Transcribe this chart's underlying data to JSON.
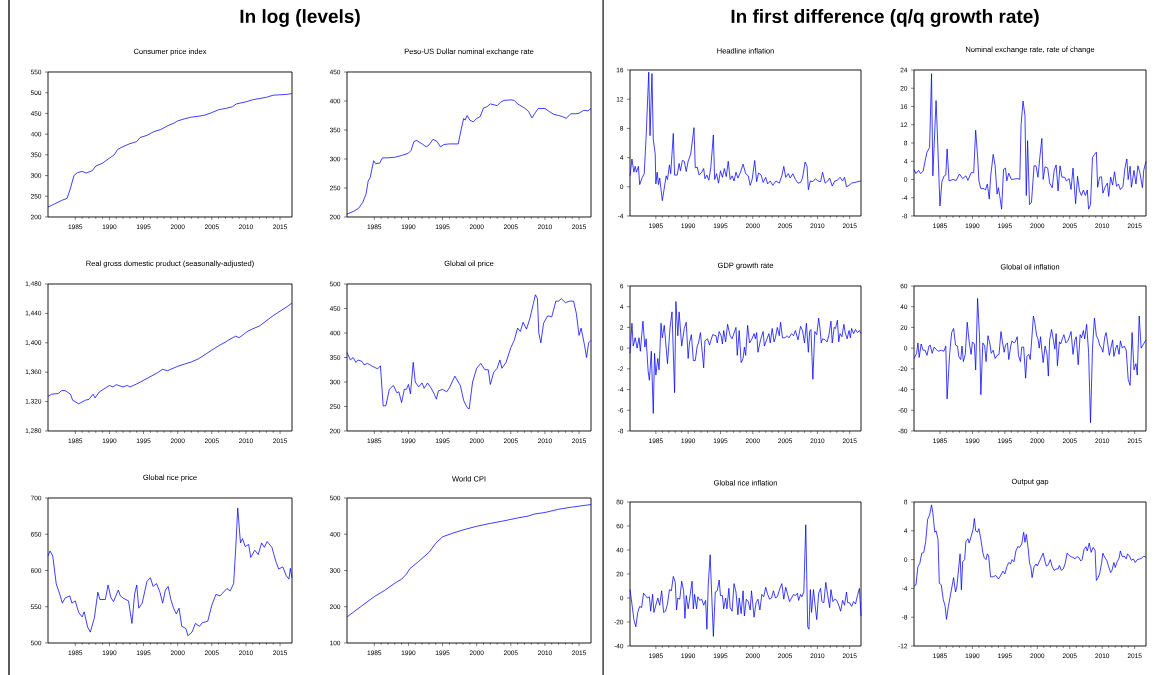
{
  "chart_data": [
    {
      "type": "line",
      "title": "Consumer price index",
      "annotations": [
        "In log (levels)"
      ],
      "color": "#0000ff",
      "xlim": [
        1981,
        2016.75
      ],
      "xticks": [
        1985,
        1990,
        1995,
        2000,
        2005,
        2010,
        2015
      ],
      "ylim": [
        200,
        550
      ],
      "yticks": [
        200,
        250,
        300,
        350,
        400,
        450,
        500,
        550
      ],
      "x": [
        1981,
        1982,
        1983,
        1983.8,
        1984.3,
        1984.8,
        1985.3,
        1986,
        1986.6,
        1987.5,
        1988,
        1989,
        1990,
        1990.7,
        1991.2,
        1992,
        1993,
        1994,
        1994.5,
        1995.5,
        1996.5,
        1997.5,
        1998.5,
        1999.5,
        2000,
        2001,
        2002,
        2003,
        2004,
        2005,
        2006,
        2007,
        2008,
        2008.6,
        2010,
        2011,
        2012,
        2013,
        2014,
        2015,
        2016,
        2016.75
      ],
      "values": [
        224,
        232,
        240,
        245,
        270,
        300,
        307,
        310,
        306,
        312,
        323,
        330,
        342,
        350,
        363,
        370,
        377,
        382,
        392,
        397,
        406,
        411,
        420,
        427,
        432,
        437,
        441,
        443,
        446,
        452,
        459,
        462,
        466,
        473,
        478,
        483,
        486,
        489,
        494,
        495,
        496,
        498
      ]
    },
    {
      "type": "line",
      "title": "Peso-US Dollar nominal exchange rate",
      "color": "#0000ff",
      "xlim": [
        1981,
        2016.75
      ],
      "xticks": [
        1985,
        1990,
        1995,
        2000,
        2005,
        2010,
        2015
      ],
      "ylim": [
        200,
        450
      ],
      "yticks": [
        200,
        250,
        300,
        350,
        400,
        450
      ],
      "x": [
        1981,
        1982,
        1982.7,
        1983.3,
        1983.8,
        1984.1,
        1984.4,
        1984.9,
        1985.2,
        1985.8,
        1986.2,
        1987,
        1988,
        1989,
        1990,
        1990.4,
        1990.8,
        1991.2,
        1992,
        1992.6,
        1993,
        1993.6,
        1994.2,
        1994.7,
        1995.2,
        1996,
        1997.3,
        1997.8,
        1998.1,
        1998.3,
        1998.6,
        1999,
        1999.5,
        2000,
        2000.5,
        2001,
        2001.5,
        2002,
        2003,
        2003.5,
        2004,
        2005,
        2005.5,
        2006,
        2007,
        2007.6,
        2008.1,
        2008.6,
        2009,
        2010,
        2010.6,
        2011.3,
        2012,
        2012.6,
        2013.1,
        2013.8,
        2014.5,
        2015,
        2015.7,
        2016.3,
        2016.75
      ],
      "values": [
        205,
        210,
        215,
        225,
        240,
        262,
        268,
        297,
        292,
        293,
        302,
        302,
        303,
        306,
        310,
        315,
        330,
        332,
        326,
        321,
        324,
        334,
        330,
        321,
        325,
        326,
        326,
        355,
        370,
        367,
        375,
        367,
        364,
        370,
        373,
        388,
        390,
        395,
        392,
        398,
        401,
        402,
        401,
        395,
        388,
        382,
        371,
        380,
        387,
        387,
        382,
        377,
        375,
        373,
        370,
        378,
        378,
        379,
        384,
        383,
        387
      ]
    },
    {
      "type": "line",
      "title": "Real gross domestic product (seasonally-adjusted)",
      "color": "#0000ff",
      "xlim": [
        1981,
        2016.75
      ],
      "xticks": [
        1985,
        1990,
        1995,
        2000,
        2005,
        2010,
        2015
      ],
      "ylim": [
        1280,
        1480
      ],
      "yticks": [
        {
          "value": 1280,
          "label": "1,280"
        },
        {
          "value": 1320,
          "label": "1,320"
        },
        {
          "value": 1360,
          "label": "1,360"
        },
        {
          "value": 1400,
          "label": "1,400"
        },
        {
          "value": 1440,
          "label": "1,440"
        },
        {
          "value": 1480,
          "label": "1,480"
        }
      ],
      "x": [
        1981,
        1981.5,
        1982.5,
        1983,
        1983.5,
        1984.3,
        1984.6,
        1985.5,
        1986.5,
        1987,
        1987.6,
        1987.9,
        1988.5,
        1989,
        1990,
        1990.5,
        1991,
        1992,
        1992.6,
        1993,
        1994,
        1995,
        1996,
        1997,
        1997.8,
        1998.5,
        1999,
        2000,
        2001,
        2002,
        2003,
        2004,
        2005,
        2006,
        2007,
        2007.5,
        2008.5,
        2009,
        2009.6,
        2010.3,
        2011,
        2012,
        2013,
        2014,
        2015,
        2016,
        2016.75
      ],
      "values": [
        1327,
        1330,
        1331,
        1335,
        1335,
        1330,
        1322,
        1317,
        1322,
        1323,
        1330,
        1325,
        1333,
        1336,
        1342,
        1340,
        1343,
        1340,
        1342,
        1340,
        1344,
        1349,
        1354,
        1359,
        1364,
        1362,
        1364,
        1368,
        1371,
        1374,
        1378,
        1384,
        1390,
        1396,
        1401,
        1404,
        1409,
        1407,
        1411,
        1416,
        1419,
        1423,
        1430,
        1437,
        1443,
        1449,
        1454
      ]
    },
    {
      "type": "line",
      "title": "Global oil price",
      "color": "#0000ff",
      "xlim": [
        1981,
        2016.75
      ],
      "xticks": [
        1985,
        1990,
        1995,
        2000,
        2005,
        2010,
        2015
      ],
      "ylim": [
        200,
        500
      ],
      "yticks": [
        200,
        250,
        300,
        350,
        400,
        450,
        500
      ],
      "x": [
        1981,
        1981.5,
        1981.9,
        1982.3,
        1982.6,
        1983.2,
        1983.5,
        1984,
        1984.6,
        1985,
        1985.5,
        1985.9,
        1986.3,
        1986.7,
        1987.2,
        1987.8,
        1988.3,
        1988.6,
        1989,
        1989.4,
        1989.7,
        1990,
        1990.3,
        1990.7,
        1991,
        1991.5,
        1992,
        1992.3,
        1992.8,
        1993.3,
        1993.8,
        1994.1,
        1994.4,
        1995,
        1995.6,
        1996,
        1996.8,
        1997.3,
        1997.6,
        1998.1,
        1998.6,
        1998.9,
        1999.4,
        2000,
        2000.6,
        2001.2,
        2001.7,
        2002,
        2002.5,
        2003,
        2003.4,
        2003.7,
        2004.3,
        2005,
        2005.5,
        2006,
        2006.4,
        2006.8,
        2007.3,
        2007.8,
        2008.3,
        2008.6,
        2008.9,
        2009.1,
        2009.4,
        2009.8,
        2010.4,
        2011,
        2011.6,
        2012,
        2012.4,
        2013,
        2013.6,
        2014.2,
        2014.6,
        2015,
        2015.3,
        2015.8,
        2016.1,
        2016.4,
        2016.75
      ],
      "values": [
        360,
        345,
        350,
        340,
        345,
        342,
        335,
        338,
        333,
        330,
        327,
        333,
        251,
        252,
        285,
        293,
        278,
        280,
        258,
        285,
        285,
        295,
        276,
        340,
        300,
        290,
        298,
        287,
        298,
        288,
        275,
        265,
        282,
        285,
        280,
        288,
        312,
        300,
        293,
        262,
        248,
        245,
        300,
        328,
        338,
        325,
        325,
        295,
        320,
        328,
        345,
        328,
        340,
        370,
        385,
        410,
        403,
        422,
        408,
        430,
        460,
        478,
        470,
        400,
        380,
        420,
        435,
        433,
        465,
        465,
        470,
        462,
        465,
        465,
        440,
        395,
        410,
        375,
        350,
        380,
        385
      ]
    },
    {
      "type": "line",
      "title": "Global rice price",
      "color": "#0000ff",
      "xlim": [
        1981,
        2016.75
      ],
      "xticks": [
        1985,
        1990,
        1995,
        2000,
        2005,
        2010,
        2015
      ],
      "ylim": [
        500,
        700
      ],
      "yticks": [
        500,
        550,
        600,
        650,
        700
      ],
      "x": [
        1981,
        1981.3,
        1981.7,
        1982.2,
        1982.8,
        1983.1,
        1983.5,
        1984.2,
        1984.5,
        1985,
        1985.5,
        1986,
        1986.3,
        1986.8,
        1987.2,
        1987.8,
        1988.3,
        1988.6,
        1989.4,
        1989.8,
        1990.2,
        1990.6,
        1991.3,
        1991.6,
        1992,
        1992.8,
        1993.3,
        1993.7,
        1994,
        1994.3,
        1994.8,
        1995.5,
        1996,
        1996.4,
        1996.9,
        1997.4,
        1997.8,
        1998.2,
        1998.6,
        1999,
        1999.4,
        1999.8,
        2000.2,
        2000.6,
        2001.2,
        2001.5,
        2002.1,
        2002.6,
        2003.2,
        2003.6,
        2004.4,
        2005,
        2005.6,
        2006.2,
        2007.2,
        2007.7,
        2008.2,
        2008.5,
        2008.8,
        2009.2,
        2009.5,
        2009.9,
        2010.4,
        2010.7,
        2011.3,
        2011.8,
        2012.3,
        2012.7,
        2013.1,
        2013.8,
        2014.4,
        2014.8,
        2015.4,
        2015.9,
        2016.3,
        2016.5,
        2016.75
      ],
      "values": [
        620,
        627,
        620,
        582,
        565,
        555,
        562,
        565,
        555,
        558,
        542,
        536,
        543,
        522,
        515,
        535,
        570,
        560,
        560,
        580,
        563,
        557,
        573,
        565,
        562,
        558,
        527,
        568,
        580,
        548,
        555,
        585,
        590,
        578,
        582,
        570,
        555,
        573,
        578,
        560,
        548,
        540,
        548,
        523,
        520,
        510,
        515,
        527,
        523,
        528,
        530,
        552,
        567,
        565,
        575,
        572,
        582,
        630,
        686,
        638,
        644,
        633,
        636,
        618,
        628,
        622,
        638,
        632,
        640,
        632,
        612,
        602,
        605,
        593,
        588,
        603,
        590
      ]
    },
    {
      "type": "line",
      "title": "World CPI",
      "color": "#0000ff",
      "xlim": [
        1981,
        2016.75
      ],
      "xticks": [
        1985,
        1990,
        1995,
        2000,
        2005,
        2010,
        2015
      ],
      "ylim": [
        100,
        500
      ],
      "yticks": [
        100,
        200,
        300,
        400,
        500
      ],
      "x": [
        1981,
        1983,
        1985,
        1986.5,
        1988,
        1989,
        1989.7,
        1990.2,
        1991.5,
        1993,
        1994,
        1995,
        1996.5,
        1998,
        2000,
        2002,
        2004,
        2006,
        2007.5,
        2008.5,
        2010,
        2012,
        2014,
        2016.75
      ],
      "values": [
        172,
        200,
        228,
        245,
        265,
        276,
        290,
        305,
        325,
        350,
        375,
        393,
        403,
        412,
        422,
        430,
        437,
        445,
        450,
        456,
        460,
        469,
        475,
        482
      ]
    },
    {
      "type": "line",
      "title": "Headline inflation",
      "annotations": [
        "In first difference (q/q growth rate)"
      ],
      "color": "#0000ff",
      "xlim": [
        1981,
        2016.75
      ],
      "xticks": [
        1985,
        1990,
        1995,
        2000,
        2005,
        2010,
        2015
      ],
      "ylim": [
        -4,
        16
      ],
      "yticks": [
        -4,
        0,
        4,
        8,
        12,
        16
      ],
      "x": [
        1981.0,
        1981.3,
        1981.6,
        1981.8,
        1982.0,
        1982.3,
        1982.5,
        1982.9,
        1983.2,
        1983.5,
        1983.9,
        1984.1,
        1984.4,
        1984.6,
        1984.9,
        1985.0,
        1985.2,
        1985.4,
        1985.6,
        1986.0,
        1986.6,
        1986.8,
        1987.1,
        1987.3,
        1987.7,
        1987.9,
        1988.3,
        1988.6,
        1988.8,
        1989.1,
        1989.4,
        1989.7,
        1990.0,
        1990.4,
        1990.9,
        1991.1,
        1991.4,
        1991.7,
        1992.1,
        1992.4,
        1992.6,
        1992.9,
        1993.2,
        1993.5,
        1993.9,
        1994.1,
        1994.4,
        1994.7,
        1995.0,
        1995.3,
        1995.6,
        1995.9,
        1996.2,
        1996.5,
        1996.8,
        1997.1,
        1997.4,
        1997.7,
        1998.1,
        1998.5,
        1998.9,
        1999.3,
        1999.6,
        1999.9,
        2000.3,
        2000.6,
        2000.9,
        2001.3,
        2001.6,
        2002,
        2002.3,
        2002.7,
        2003.1,
        2003.6,
        2004.1,
        2004.5,
        2004.8,
        2005.1,
        2005.5,
        2005.8,
        2006.2,
        2006.6,
        2007,
        2007.4,
        2007.7,
        2008.1,
        2008.4,
        2008.6,
        2008.9,
        2009.3,
        2009.7,
        2010.1,
        2010.5,
        2010.8,
        2011.2,
        2011.6,
        2011.9,
        2012.3,
        2012.7,
        2013.1,
        2013.5,
        2013.9,
        2014.2,
        2014.5,
        2014.9,
        2015.3,
        2016.75
      ],
      "values": [
        1.5,
        3.8,
        2,
        2.8,
        2,
        2.8,
        0.3,
        1.3,
        1.8,
        7,
        15.7,
        7,
        15.5,
        6.5,
        4.5,
        0.4,
        2,
        0.3,
        1.2,
        -1.9,
        1.5,
        1,
        3,
        1.8,
        7.3,
        1.6,
        1.6,
        3.2,
        2.2,
        3.6,
        3.5,
        2.1,
        3.5,
        4.5,
        8.1,
        2.6,
        2.7,
        1.6,
        2,
        2.5,
        1.1,
        1.6,
        0.9,
        2.6,
        7.1,
        1.0,
        1.8,
        0.5,
        2.2,
        1.3,
        2.5,
        1.4,
        3.5,
        1.0,
        1.5,
        0.8,
        2.0,
        1.2,
        2.0,
        3.1,
        1.8,
        1.5,
        0.2,
        1.0,
        3.6,
        0.7,
        1.9,
        1.6,
        0.6,
        1.3,
        0.4,
        0.8,
        0.2,
        0.8,
        0.5,
        1.5,
        2.8,
        1.3,
        1.8,
        1.2,
        1.8,
        1.0,
        0.5,
        0.6,
        1.2,
        3.4,
        2.8,
        -0.4,
        0.8,
        0.7,
        1.1,
        0.8,
        0.7,
        2.0,
        0.5,
        0.8,
        1.2,
        0.1,
        0.8,
        0.9,
        1.3,
        0.8,
        1.3,
        0.0,
        0.2,
        0.5,
        0.8
      ]
    },
    {
      "type": "line",
      "title": "Nominal exchange rate, rate of change",
      "color": "#0000ff",
      "xlim": [
        1981,
        2016.75
      ],
      "xticks": [
        1985,
        1990,
        1995,
        2000,
        2005,
        2010,
        2015
      ],
      "ylim": [
        -8,
        24
      ],
      "yticks": [
        -8,
        -4,
        0,
        4,
        8,
        12,
        16,
        20,
        24
      ],
      "x": [
        1981,
        1981.3,
        1981.7,
        1982,
        1982.4,
        1982.7,
        1983,
        1983.4,
        1983.7,
        1983.9,
        1984.4,
        1984.6,
        1985,
        1985.3,
        1985.6,
        1985.9,
        1986.1,
        1986.4,
        1987,
        1987.5,
        1988,
        1988.5,
        1989,
        1989.3,
        1989.8,
        1990.2,
        1990.5,
        1990.8,
        1991,
        1991.3,
        1991.8,
        1992,
        1992.3,
        1992.6,
        1992.8,
        1993.2,
        1993.5,
        1993.8,
        1994,
        1994.2,
        1994.5,
        1994.8,
        1995.1,
        1995.3,
        1995.6,
        1996,
        1997,
        1997.3,
        1997.5,
        1997.8,
        1998.1,
        1998.3,
        1998.5,
        1998.8,
        1999.1,
        1999.5,
        1999.8,
        2000.1,
        2000.4,
        2000.7,
        2000.9,
        2001.2,
        2001.6,
        2001.9,
        2002.3,
        2002.6,
        2002.9,
        2003.2,
        2003.5,
        2003.8,
        2004.2,
        2004.5,
        2004.9,
        2005.2,
        2005.5,
        2005.9,
        2006.2,
        2006.5,
        2006.8,
        2007.1,
        2007.4,
        2007.7,
        2007.9,
        2008.2,
        2008.5,
        2008.8,
        2009.1,
        2009.3,
        2009.6,
        2009.9,
        2010.1,
        2010.5,
        2010.8,
        2011,
        2011.3,
        2011.6,
        2011.9,
        2012.2,
        2012.5,
        2012.8,
        2013.2,
        2013.5,
        2013.8,
        2014,
        2014.3,
        2014.5,
        2014.9,
        2015.2,
        2015.5,
        2015.8,
        2016.2,
        2016.4,
        2016.75
      ],
      "values": [
        2.2,
        1.3,
        2.0,
        1.3,
        1.8,
        4,
        6,
        7,
        23.2,
        0.8,
        17.3,
        10,
        -5.8,
        -0.5,
        0.7,
        1,
        6.7,
        -0.3,
        0,
        -0.2,
        1.2,
        0.2,
        0.8,
        -0.2,
        1.5,
        1.5,
        10.8,
        5,
        -0.3,
        -2,
        -2,
        -2.3,
        -1,
        -4.3,
        0.5,
        5.5,
        3,
        -3.2,
        -1.8,
        -3.5,
        -6.5,
        2.2,
        2.5,
        -0.3,
        1.4,
        0,
        0.2,
        0,
        12,
        17.2,
        14,
        -3.5,
        8.5,
        -5.5,
        -5,
        3,
        3,
        0.5,
        5,
        9,
        0,
        2.8,
        2.5,
        -0.8,
        -1.8,
        2,
        3.2,
        -2.5,
        3,
        0.5,
        0.5,
        -0.3,
        0.2,
        -2.2,
        2.5,
        -5.3,
        0.7,
        -2.5,
        -3.5,
        -2.3,
        -3.5,
        -2.3,
        -6.5,
        -5.5,
        4.8,
        5.5,
        6.0,
        -1.7,
        0.5,
        0.6,
        -3,
        -1.5,
        -0.8,
        -3.7,
        0.5,
        -1.2,
        1.7,
        -1.5,
        -1,
        -2.2,
        -1.5,
        2.5,
        4.5,
        0,
        2.9,
        -1.7,
        2,
        -1,
        3,
        1.5,
        -1.8,
        2,
        4
      ]
    },
    {
      "type": "line",
      "title": "GDP growth rate",
      "color": "#0000ff",
      "xlim": [
        1981,
        2016.75
      ],
      "xticks": [
        1985,
        1990,
        1995,
        2000,
        2005,
        2010,
        2015
      ],
      "ylim": [
        -8,
        6
      ],
      "yticks": [
        -8,
        -6,
        -4,
        -2,
        0,
        2,
        4,
        6
      ],
      "x": [
        1981,
        1981.3,
        1981.5,
        1981.8,
        1982.1,
        1982.4,
        1982.6,
        1983,
        1983.3,
        1983.5,
        1983.8,
        1984,
        1984.3,
        1984.6,
        1984.8,
        1985,
        1985.3,
        1985.5,
        1985.8,
        1986,
        1986.3,
        1986.8,
        1987.2,
        1987.5,
        1987.9,
        1988.1,
        1988.4,
        1988.6,
        1989,
        1989.4,
        1989.7,
        1990,
        1990.2,
        1990.5,
        1990.8,
        1991.1,
        1991.4,
        1991.6,
        1991.9,
        1992.4,
        1992.6,
        1993,
        1993.3,
        1993.8,
        1994.3,
        1994.5,
        1994.8,
        1995.1,
        1995.3,
        1995.5,
        1995.8,
        1996.1,
        1996.5,
        1996.8,
        1997.4,
        1997.6,
        1997.9,
        1998.2,
        1998.5,
        1998.7,
        1998.9,
        1999.2,
        1999.5,
        1999.8,
        2000.2,
        2000.4,
        2000.6,
        2000.8,
        2001.2,
        2001.6,
        2001.8,
        2002.2,
        2002.5,
        2002.7,
        2003,
        2003.3,
        2003.5,
        2003.8,
        2004.1,
        2004.3,
        2004.6,
        2005,
        2005.3,
        2005.6,
        2006,
        2006.3,
        2006.6,
        2007,
        2007.4,
        2007.7,
        2008,
        2008.3,
        2008.6,
        2008.8,
        2009,
        2009.3,
        2009.6,
        2009.9,
        2010.2,
        2010.4,
        2010.6,
        2010.8,
        2011.2,
        2011.5,
        2011.8,
        2012.1,
        2012.3,
        2012.6,
        2012.8,
        2013.1,
        2013.3,
        2013.5,
        2013.8,
        2014.1,
        2014.3,
        2014.6,
        2014.9,
        2015.1,
        2015.3,
        2015.6,
        2015.9,
        2016.2,
        2016.5,
        2016.75
      ],
      "values": [
        -0.5,
        2.4,
        0.2,
        1.0,
        0,
        1.0,
        -0.3,
        2.6,
        0.1,
        0.9,
        -2.2,
        -3.1,
        -0.3,
        -6.3,
        -0.5,
        -2.6,
        -1,
        -2.1,
        2.4,
        1.0,
        2.2,
        -1.5,
        2.0,
        3.5,
        -4.3,
        4.5,
        1.2,
        3.5,
        0.2,
        1.9,
        2.5,
        -1.0,
        0.5,
        1.3,
        -1.2,
        -1.2,
        0.2,
        0.5,
        1.5,
        -1.9,
        0.7,
        0.9,
        0.3,
        1.3,
        1.2,
        0.5,
        1.6,
        1.2,
        0.4,
        1.7,
        0.6,
        2.3,
        1.2,
        0.9,
        2.0,
        -0.7,
        1.7,
        -1.4,
        -1.0,
        0.1,
        -0.7,
        2.2,
        0.5,
        0.8,
        1.4,
        0.9,
        1.5,
        -0.4,
        0.8,
        1.6,
        0.2,
        0.9,
        1.4,
        0.5,
        1.9,
        0.6,
        1.0,
        2.0,
        1.2,
        2.5,
        1.0,
        1.0,
        1.2,
        1.0,
        1.4,
        1.2,
        1.7,
        0.8,
        2.1,
        1.7,
        0.5,
        2.4,
        -0.4,
        1.6,
        1.8,
        -3.0,
        1.6,
        1.3,
        2.9,
        1.9,
        0.5,
        0.9,
        0.8,
        0.6,
        1.3,
        2.6,
        0.5,
        2.0,
        1.9,
        2.7,
        0.6,
        1.4,
        1.1,
        2.3,
        1.5,
        0.9,
        1.7,
        1.0,
        1.9,
        1.4,
        1.8,
        1.5,
        1.7,
        1.4
      ]
    },
    {
      "type": "line",
      "title": "Global oil inflation",
      "color": "#0000ff",
      "xlim": [
        1981,
        2016.75
      ],
      "xticks": [
        1985,
        1990,
        1995,
        2000,
        2005,
        2010,
        2015
      ],
      "ylim": [
        -80,
        60
      ],
      "yticks": [
        -80,
        -60,
        -40,
        -20,
        0,
        20,
        40,
        60
      ],
      "x": [
        1981,
        1981.4,
        1981.6,
        1981.8,
        1982.1,
        1982.4,
        1982.7,
        1983,
        1983.3,
        1983.5,
        1983.8,
        1984.1,
        1984.4,
        1984.7,
        1985.2,
        1985.6,
        1985.9,
        1986.1,
        1986.5,
        1986.8,
        1987.1,
        1987.4,
        1987.7,
        1987.9,
        1988.2,
        1988.4,
        1988.6,
        1988.9,
        1989.2,
        1989.5,
        1989.8,
        1990,
        1990.3,
        1990.5,
        1990.8,
        1991.1,
        1991.3,
        1991.6,
        1991.9,
        1992.1,
        1992.4,
        1992.7,
        1992.9,
        1993.2,
        1993.5,
        1993.8,
        1994.1,
        1994.4,
        1994.6,
        1994.9,
        1995.1,
        1995.4,
        1995.6,
        1995.9,
        1996.1,
        1996.4,
        1996.6,
        1996.9,
        1997.1,
        1997.4,
        1997.6,
        1997.9,
        1998.2,
        1998.4,
        1998.7,
        1998.9,
        1999.1,
        1999.4,
        1999.6,
        1999.9,
        2000.1,
        2000.3,
        2000.5,
        2000.7,
        2000.9,
        2001.2,
        2001.5,
        2001.7,
        2001.9,
        2002.2,
        2002.5,
        2002.7,
        2002.9,
        2003.1,
        2003.4,
        2003.6,
        2003.9,
        2004.1,
        2004.4,
        2004.7,
        2004.9,
        2005.2,
        2005.5,
        2005.8,
        2006,
        2006.3,
        2006.6,
        2006.8,
        2007.1,
        2007.3,
        2007.6,
        2007.9,
        2008.2,
        2008.5,
        2008.8,
        2009.1,
        2009.4,
        2009.6,
        2009.9,
        2010.1,
        2010.4,
        2010.6,
        2010.8,
        2011.1,
        2011.3,
        2011.6,
        2011.8,
        2012.1,
        2012.3,
        2012.6,
        2012.8,
        2013.1,
        2013.4,
        2013.7,
        2014,
        2014.3,
        2014.6,
        2014.9,
        2015.2,
        2015.4,
        2015.7,
        2016,
        2016.75
      ],
      "values": [
        -10,
        -5,
        5,
        -9,
        4,
        -2,
        -2,
        -7,
        2,
        3,
        -5,
        1,
        -1,
        -3,
        -2,
        -3,
        2,
        -49,
        -5,
        15,
        19,
        3,
        2,
        -8,
        -11,
        2,
        -13,
        -6,
        25,
        6,
        -6,
        6,
        4,
        -21,
        48,
        10,
        -45,
        5,
        2,
        -13,
        12,
        4,
        -5,
        -2,
        -10,
        -7,
        -6,
        16,
        7,
        -4,
        3,
        5,
        -11,
        2,
        7,
        5,
        6,
        11,
        -7,
        -13,
        1,
        1,
        -29,
        -8,
        -6,
        -11,
        5,
        31,
        25,
        12,
        9,
        0,
        11,
        -2,
        -14,
        2,
        -6,
        -27,
        8,
        18,
        7,
        -1,
        14,
        -17,
        6,
        4,
        10,
        13,
        5,
        7,
        10,
        16,
        -6,
        8,
        11,
        -16,
        13,
        10,
        17,
        9,
        23,
        -4,
        -72,
        0,
        29,
        12,
        8,
        3,
        0,
        -4,
        11,
        15,
        7,
        -7,
        -1,
        8,
        -8,
        0,
        3,
        -6,
        7,
        0,
        2,
        -2,
        -30,
        -36,
        15,
        -21,
        -15,
        -26,
        31,
        0,
        8
      ]
    },
    {
      "type": "line",
      "title": "Global rice inflation",
      "color": "#0000ff",
      "xlim": [
        1981,
        2016.75
      ],
      "xticks": [
        1985,
        1990,
        1995,
        2000,
        2005,
        2010,
        2015
      ],
      "ylim": [
        -40,
        80
      ],
      "yticks": [
        -40,
        -20,
        0,
        20,
        40,
        60,
        80
      ],
      "x": [
        1981,
        1981.3,
        1981.6,
        1981.9,
        1982.2,
        1982.5,
        1982.8,
        1983.1,
        1983.4,
        1983.7,
        1984,
        1984.2,
        1984.5,
        1984.7,
        1985,
        1985.3,
        1985.6,
        1985.9,
        1986.2,
        1986.5,
        1986.8,
        1987.1,
        1987.4,
        1987.7,
        1988,
        1988.2,
        1988.4,
        1988.7,
        1989,
        1989.3,
        1989.5,
        1989.7,
        1990,
        1990.3,
        1990.6,
        1990.8,
        1991,
        1991.3,
        1991.5,
        1991.8,
        1992.1,
        1992.4,
        1992.7,
        1992.9,
        1993.1,
        1993.4,
        1993.9,
        1994.2,
        1994.5,
        1994.8,
        1995,
        1995.3,
        1995.5,
        1995.8,
        1996,
        1996.3,
        1996.5,
        1996.8,
        1997.1,
        1997.4,
        1997.7,
        1997.9,
        1998.2,
        1998.5,
        1998.7,
        1999,
        1999.3,
        1999.6,
        1999.8,
        2000.2,
        2000.5,
        2000.8,
        2001.1,
        2001.4,
        2001.7,
        2002,
        2002.3,
        2002.6,
        2002.9,
        2003.2,
        2003.5,
        2003.8,
        2004.2,
        2004.5,
        2004.8,
        2005.1,
        2005.4,
        2005.7,
        2006,
        2006.3,
        2006.6,
        2006.9,
        2007.1,
        2007.4,
        2007.6,
        2007.9,
        2008.2,
        2008.5,
        2008.7,
        2008.9,
        2009.1,
        2009.4,
        2009.6,
        2009.9,
        2010.2,
        2010.5,
        2010.7,
        2011,
        2011.3,
        2011.6,
        2011.9,
        2012.1,
        2012.4,
        2012.7,
        2013,
        2013.3,
        2013.6,
        2013.9,
        2014.2,
        2014.5,
        2014.7,
        2015,
        2015.3,
        2015.6,
        2015.9,
        2016.2,
        2016.5,
        2016.75
      ],
      "values": [
        7,
        -5,
        -18,
        -24,
        -12,
        -7,
        -8,
        4,
        2,
        0,
        1,
        -11,
        3,
        -12,
        -6,
        0,
        -6,
        6,
        -12,
        -11,
        -5,
        7,
        6,
        18,
        13,
        -10,
        0,
        -1,
        14,
        6,
        -17,
        2,
        -9,
        2,
        14,
        -9,
        3,
        -9,
        1,
        -2,
        -1,
        -6,
        -2,
        -26,
        10,
        36,
        -32,
        5,
        6,
        15,
        2,
        2,
        -9,
        0,
        -9,
        8,
        -8,
        -11,
        12,
        5,
        -14,
        0,
        -13,
        6,
        -15,
        -1,
        -3,
        -10,
        6,
        -16,
        -4,
        -1,
        -10,
        3,
        1,
        9,
        3,
        -1,
        0,
        6,
        0,
        1,
        8,
        12,
        -1,
        9,
        3,
        -3,
        0,
        3,
        2,
        4,
        -2,
        3,
        1,
        5,
        61,
        -24,
        -26,
        7,
        -12,
        7,
        -4,
        -18,
        4,
        8,
        -3,
        -4,
        13,
        2,
        -8,
        7,
        -3,
        -1,
        -2,
        -6,
        -11,
        -2,
        -6,
        5,
        -4,
        -4,
        -7,
        -3,
        -5,
        2,
        8,
        -15
      ]
    },
    {
      "type": "line",
      "title": "Output gap",
      "color": "#0000ff",
      "xlim": [
        1981,
        2016.75
      ],
      "xticks": [
        1985,
        1990,
        1995,
        2000,
        2005,
        2010,
        2015
      ],
      "ylim": [
        -12,
        8
      ],
      "yticks": [
        -12,
        -8,
        -4,
        0,
        4,
        8
      ],
      "x": [
        1981,
        1981.3,
        1981.6,
        1981.9,
        1982.2,
        1982.5,
        1982.8,
        1983.1,
        1983.4,
        1983.7,
        1983.9,
        1984.2,
        1984.4,
        1984.7,
        1984.9,
        1985.2,
        1985.5,
        1985.8,
        1986,
        1986.3,
        1986.6,
        1986.9,
        1987.1,
        1987.4,
        1987.6,
        1987.9,
        1988.1,
        1988.3,
        1988.5,
        1988.8,
        1989,
        1989.3,
        1989.5,
        1989.8,
        1990.1,
        1990.3,
        1990.5,
        1990.8,
        1991,
        1991.3,
        1991.6,
        1991.8,
        1992.1,
        1992.3,
        1992.5,
        1992.8,
        1993.2,
        1993.6,
        1994,
        1994.3,
        1994.7,
        1995,
        1995.3,
        1995.6,
        1995.9,
        1996.1,
        1996.4,
        1996.7,
        1997,
        1997.3,
        1997.6,
        1997.9,
        1998.1,
        1998.3,
        1998.6,
        1998.8,
        1999,
        1999.2,
        1999.5,
        1999.8,
        2000,
        2000.3,
        2000.6,
        2000.9,
        2001.2,
        2001.4,
        2001.7,
        2002,
        2002.3,
        2002.6,
        2002.9,
        2003.2,
        2003.4,
        2003.7,
        2004,
        2004.3,
        2004.6,
        2004.9,
        2005.2,
        2005.5,
        2005.8,
        2006.1,
        2006.4,
        2006.7,
        2006.9,
        2007.2,
        2007.5,
        2007.7,
        2008,
        2008.3,
        2008.6,
        2008.9,
        2009.1,
        2009.3,
        2009.6,
        2009.9,
        2010.1,
        2010.4,
        2010.7,
        2011,
        2011.3,
        2011.5,
        2011.8,
        2012,
        2012.3,
        2012.6,
        2012.8,
        2013.1,
        2013.4,
        2013.7,
        2013.9,
        2014.2,
        2014.5,
        2014.8,
        2015.1,
        2015.4,
        2015.8,
        2016.1,
        2016.4,
        2016.75
      ],
      "values": [
        -3.7,
        -3.5,
        -1,
        -0.5,
        0.9,
        1.0,
        2.5,
        5.6,
        6.2,
        7.6,
        6.5,
        3.8,
        4.0,
        2.8,
        -3.3,
        -3.5,
        -5.5,
        -6.5,
        -8.3,
        -6.5,
        -5,
        -3.5,
        -2.5,
        -4.5,
        -3.8,
        -1.0,
        0.8,
        -4.2,
        -0.3,
        0.0,
        2.5,
        2.9,
        2.3,
        3.2,
        4.2,
        5.7,
        4.0,
        3.8,
        4.3,
        2.8,
        1.0,
        0.3,
        0,
        0.8,
        0.5,
        -2.4,
        -2.4,
        -2.2,
        -2.7,
        -2.3,
        -1.6,
        -2.0,
        -1.0,
        -0.4,
        -0.6,
        0,
        -0.3,
        1.2,
        1.8,
        1.7,
        2.2,
        3.8,
        2.4,
        3.5,
        1.5,
        -0.5,
        -1.0,
        -2.5,
        -1.0,
        -0.6,
        -0.9,
        -0.3,
        0.3,
        0.9,
        -0.3,
        -0.9,
        -0.7,
        0.0,
        -1.0,
        -1.5,
        -1.3,
        -1.3,
        -0.8,
        -1.5,
        -1.3,
        -0.5,
        0.9,
        0.6,
        0.4,
        0.3,
        0.1,
        0.4,
        0.3,
        -0.2,
        0.0,
        1.4,
        1.8,
        1.2,
        2.3,
        1.0,
        1.7,
        1.3,
        -2.9,
        -2.6,
        -2.0,
        -0.5,
        0.9,
        0.3,
        -0.1,
        -1.0,
        -1.8,
        -1.5,
        -0.4,
        -1.1,
        -0.3,
        0.2,
        1.2,
        0.4,
        0.5,
        0.1,
        0.8,
        0.5,
        -0.1,
        0.1,
        -0.4,
        0.0,
        0.1,
        0.2,
        0.5,
        0.3
      ]
    }
  ]
}
